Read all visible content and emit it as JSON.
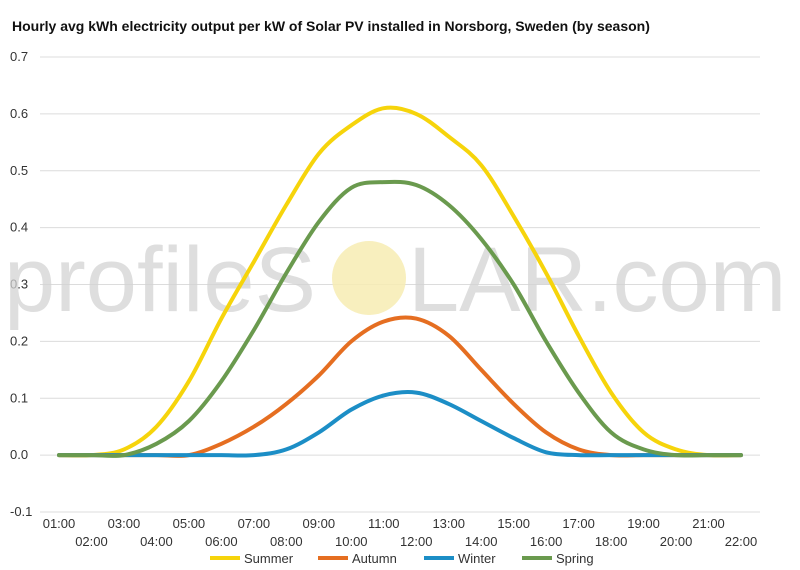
{
  "chart_data": {
    "type": "line",
    "title": "Hourly avg kWh electricity output per kW of Solar PV installed in Norsborg, Sweden (by season)",
    "watermark": "profileSOLAR.com",
    "watermark_parts": [
      "profileS",
      "LAR.com"
    ],
    "ylim": [
      -0.1,
      0.7
    ],
    "yticks": [
      "-0.1",
      "0.0",
      "0.1",
      "0.2",
      "0.3",
      "0.4",
      "0.5",
      "0.6",
      "0.7"
    ],
    "x": [
      "01:00",
      "02:00",
      "03:00",
      "04:00",
      "05:00",
      "06:00",
      "07:00",
      "08:00",
      "09:00",
      "10:00",
      "11:00",
      "12:00",
      "13:00",
      "14:00",
      "15:00",
      "16:00",
      "17:00",
      "18:00",
      "19:00",
      "20:00",
      "21:00",
      "22:00"
    ],
    "grid": true,
    "legend_position": "bottom",
    "series": [
      {
        "name": "Summer",
        "color": "#f6d40b",
        "values": [
          0,
          0,
          0.01,
          0.05,
          0.13,
          0.24,
          0.34,
          0.44,
          0.53,
          0.58,
          0.61,
          0.6,
          0.56,
          0.51,
          0.42,
          0.32,
          0.21,
          0.11,
          0.04,
          0.01,
          0,
          0
        ]
      },
      {
        "name": "Autumn",
        "color": "#e56e21",
        "values": [
          0,
          0,
          0,
          0,
          0,
          0.02,
          0.05,
          0.09,
          0.14,
          0.2,
          0.235,
          0.24,
          0.21,
          0.15,
          0.09,
          0.04,
          0.01,
          0,
          0,
          0,
          0,
          0
        ]
      },
      {
        "name": "Winter",
        "color": "#1c8ec6",
        "values": [
          0,
          0,
          0,
          0,
          0,
          0,
          0,
          0.01,
          0.04,
          0.08,
          0.105,
          0.11,
          0.09,
          0.06,
          0.03,
          0.005,
          0,
          0,
          0,
          0,
          0,
          0
        ]
      },
      {
        "name": "Spring",
        "color": "#6a9a4e",
        "values": [
          0,
          0,
          0,
          0.02,
          0.06,
          0.13,
          0.22,
          0.32,
          0.41,
          0.47,
          0.48,
          0.475,
          0.44,
          0.38,
          0.3,
          0.2,
          0.11,
          0.04,
          0.01,
          0,
          0,
          0
        ]
      }
    ]
  }
}
